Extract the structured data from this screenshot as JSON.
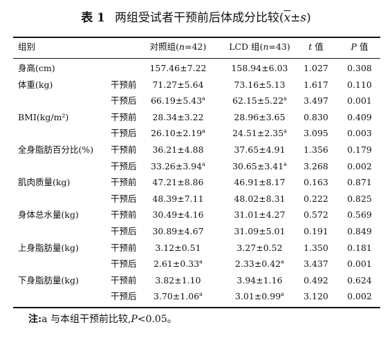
{
  "title": {
    "number": "表 1",
    "text": "两组受试者干预前后体成分比较(",
    "stat_mean": "x",
    "stat_rest": "±s",
    "close": ")"
  },
  "headers": {
    "group": "组别",
    "control_pre": "对照组(",
    "control_n": "n",
    "control_post": "=42)",
    "lcd_pre": "LCD 组(",
    "lcd_n": "n",
    "lcd_post": "=43)",
    "t_sym": "t",
    "t_suffix": " 值",
    "p_sym": "P",
    "p_suffix": " 值"
  },
  "rows": [
    {
      "group": "身高(cm)",
      "time": "",
      "control": "157.46±7.22",
      "control_sup": "",
      "lcd": "158.94±6.03",
      "lcd_sup": "",
      "t": "1.027",
      "p": "0.308"
    },
    {
      "group": "体重(kg)",
      "time": "干预前",
      "control": "71.27±5.64",
      "control_sup": "",
      "lcd": "73.16±5.13",
      "lcd_sup": "",
      "t": "1.617",
      "p": "0.110"
    },
    {
      "group": "",
      "time": "干预后",
      "control": "66.19±5.43",
      "control_sup": "a",
      "lcd": "62.15±5.22",
      "lcd_sup": "a",
      "t": "3.497",
      "p": "0.001"
    },
    {
      "group": "BMI(kg/m²)",
      "time": "干预前",
      "control": "28.34±3.22",
      "control_sup": "",
      "lcd": "28.96±3.65",
      "lcd_sup": "",
      "t": "0.830",
      "p": "0.409"
    },
    {
      "group": "",
      "time": "干预后",
      "control": "26.10±2.19",
      "control_sup": "a",
      "lcd": "24.51±2.35",
      "lcd_sup": "a",
      "t": "3.095",
      "p": "0.003"
    },
    {
      "group": "全身脂肪百分比(%)",
      "time": "干预前",
      "control": "36.21±4.88",
      "control_sup": "",
      "lcd": "37.65±4.91",
      "lcd_sup": "",
      "t": "1.356",
      "p": "0.179"
    },
    {
      "group": "",
      "time": "干预后",
      "control": "33.26±3.94",
      "control_sup": "a",
      "lcd": "30.65±3.41",
      "lcd_sup": "a",
      "t": "3.268",
      "p": "0.002"
    },
    {
      "group": "肌肉质量(kg)",
      "time": "干预前",
      "control": "47.21±8.86",
      "control_sup": "",
      "lcd": "46.91±8.17",
      "lcd_sup": "",
      "t": "0.163",
      "p": "0.871"
    },
    {
      "group": "",
      "time": "干预后",
      "control": "48.39±7.11",
      "control_sup": "",
      "lcd": "48.02±8.31",
      "lcd_sup": "",
      "t": "0.222",
      "p": "0.825"
    },
    {
      "group": "身体总水量(kg)",
      "time": "干预前",
      "control": "30.49±4.16",
      "control_sup": "",
      "lcd": "31.01±4.27",
      "lcd_sup": "",
      "t": "0.572",
      "p": "0.569"
    },
    {
      "group": "",
      "time": "干预后",
      "control": "30.89±4.67",
      "control_sup": "",
      "lcd": "31.09±5.01",
      "lcd_sup": "",
      "t": "0.191",
      "p": "0.849"
    },
    {
      "group": "上身脂肪量(kg)",
      "time": "干预前",
      "control": "3.12±0.51",
      "control_sup": "",
      "lcd": "3.27±0.52",
      "lcd_sup": "",
      "t": "1.350",
      "p": "0.181"
    },
    {
      "group": "",
      "time": "干预后",
      "control": "2.61±0.33",
      "control_sup": "a",
      "lcd": "2.33±0.42",
      "lcd_sup": "a",
      "t": "3.437",
      "p": "0.001"
    },
    {
      "group": "下身脂肪量(kg)",
      "time": "干预前",
      "control": "3.82±1.10",
      "control_sup": "",
      "lcd": "3.94±1.16",
      "lcd_sup": "",
      "t": "0.492",
      "p": "0.624"
    },
    {
      "group": "",
      "time": "干预后",
      "control": "3.70±1.06",
      "control_sup": "a",
      "lcd": "3.01±0.99",
      "lcd_sup": "a",
      "t": "3.120",
      "p": "0.002"
    }
  ],
  "note": {
    "label": "注:",
    "text_a": "a 与本组干预前比较,",
    "p_sym": "P",
    "text_b": "<0.05。"
  }
}
